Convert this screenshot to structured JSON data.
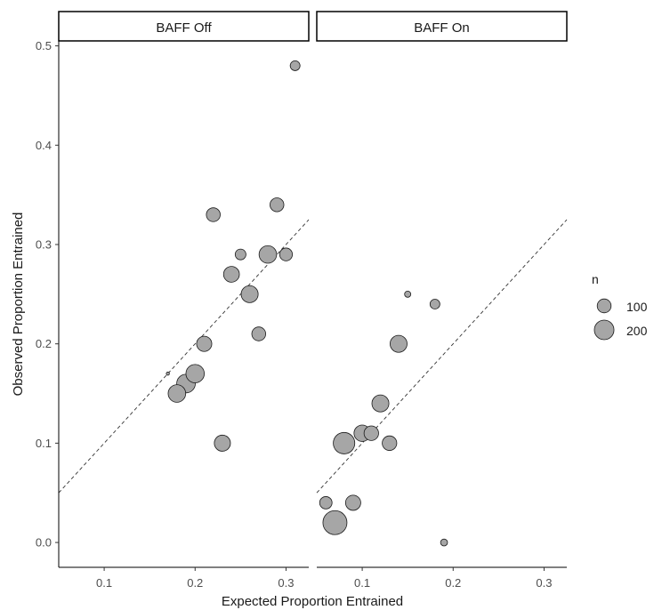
{
  "chart_data": {
    "type": "scatter",
    "xlabel": "Expected Proportion Entrained",
    "ylabel": "Observed Proportion Entrained",
    "xlim": [
      0.05,
      0.325
    ],
    "ylim": [
      -0.025,
      0.505
    ],
    "x_ticks": [
      0.1,
      0.2,
      0.3
    ],
    "x_tick_labels": [
      "0.1",
      "0.2",
      "0.3"
    ],
    "y_ticks": [
      0.0,
      0.1,
      0.2,
      0.3,
      0.4,
      0.5
    ],
    "y_tick_labels": [
      "0.0",
      "0.1",
      "0.2",
      "0.3",
      "0.4",
      "0.5"
    ],
    "grid": false,
    "reference_line": "y = x (dashed)",
    "point_color": "#a6a6a6",
    "point_stroke": "#1a1a1a",
    "size_legend": {
      "title": "n",
      "placement": "right",
      "entries": [
        {
          "label": "100",
          "n": 100
        },
        {
          "label": "200",
          "n": 200
        }
      ]
    },
    "panels": [
      {
        "label": "BAFF Off",
        "points": [
          {
            "x": 0.17,
            "y": 0.17,
            "n": 5
          },
          {
            "x": 0.18,
            "y": 0.15,
            "n": 160
          },
          {
            "x": 0.19,
            "y": 0.16,
            "n": 180
          },
          {
            "x": 0.2,
            "y": 0.17,
            "n": 175
          },
          {
            "x": 0.21,
            "y": 0.2,
            "n": 120
          },
          {
            "x": 0.22,
            "y": 0.33,
            "n": 100
          },
          {
            "x": 0.23,
            "y": 0.1,
            "n": 135
          },
          {
            "x": 0.24,
            "y": 0.27,
            "n": 130
          },
          {
            "x": 0.25,
            "y": 0.29,
            "n": 60
          },
          {
            "x": 0.26,
            "y": 0.25,
            "n": 150
          },
          {
            "x": 0.27,
            "y": 0.21,
            "n": 100
          },
          {
            "x": 0.28,
            "y": 0.29,
            "n": 160
          },
          {
            "x": 0.29,
            "y": 0.34,
            "n": 100
          },
          {
            "x": 0.3,
            "y": 0.29,
            "n": 85
          },
          {
            "x": 0.31,
            "y": 0.48,
            "n": 50
          }
        ]
      },
      {
        "label": "BAFF On",
        "points": [
          {
            "x": 0.06,
            "y": 0.04,
            "n": 80
          },
          {
            "x": 0.07,
            "y": 0.02,
            "n": 300
          },
          {
            "x": 0.08,
            "y": 0.1,
            "n": 240
          },
          {
            "x": 0.09,
            "y": 0.04,
            "n": 120
          },
          {
            "x": 0.1,
            "y": 0.11,
            "n": 140
          },
          {
            "x": 0.11,
            "y": 0.11,
            "n": 110
          },
          {
            "x": 0.12,
            "y": 0.14,
            "n": 150
          },
          {
            "x": 0.13,
            "y": 0.1,
            "n": 110
          },
          {
            "x": 0.14,
            "y": 0.2,
            "n": 150
          },
          {
            "x": 0.15,
            "y": 0.25,
            "n": 20
          },
          {
            "x": 0.18,
            "y": 0.24,
            "n": 50
          },
          {
            "x": 0.19,
            "y": 0.0,
            "n": 25
          }
        ]
      }
    ]
  }
}
